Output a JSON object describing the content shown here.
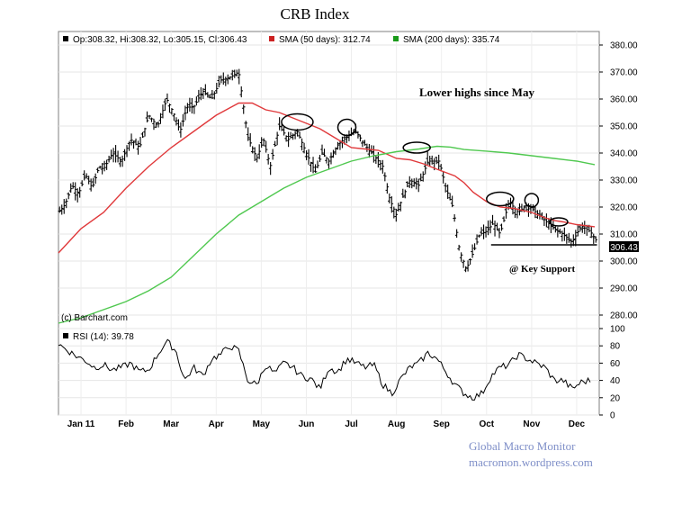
{
  "chart_data": {
    "type": "ohlc",
    "title": "CRB Index",
    "legend": {
      "ohlc": "Op:308.32, Hi:308.32, Lo:305.15, Cl:306.43",
      "sma50": "SMA (50 days): 312.74",
      "sma200": "SMA (200 days): 335.74"
    },
    "colors": {
      "sma50": "#e0393b",
      "sma200": "#4fc84f",
      "price": "#000000",
      "rsi": "#000000",
      "ohlc_swatch": "#000000"
    },
    "credit": "(c) Barchart.com",
    "last_value_label": "306.43",
    "x_labels": [
      "Jan 11",
      "Feb",
      "Mar",
      "Apr",
      "May",
      "Jun",
      "Jul",
      "Aug",
      "Sep",
      "Oct",
      "Nov",
      "Dec"
    ],
    "x_domain": [
      0,
      12
    ],
    "x_tick_positions": [
      0.5,
      1.5,
      2.5,
      3.5,
      4.5,
      5.5,
      6.5,
      7.5,
      8.5,
      9.5,
      10.5,
      11.5
    ],
    "price_axis": {
      "ylim": [
        275,
        385
      ],
      "ticks": [
        280,
        290,
        300,
        310,
        320,
        330,
        340,
        350,
        360,
        370,
        380
      ],
      "tick_labels": [
        "280.00",
        "290.00",
        "300.00",
        "310.00",
        "320.00",
        "330.00",
        "340.00",
        "350.00",
        "360.00",
        "370.00",
        "380.00"
      ]
    },
    "rsi_axis": {
      "ylim": [
        0,
        100
      ],
      "ticks": [
        0,
        20,
        40,
        60,
        80,
        100
      ],
      "tick_labels": [
        "0",
        "20",
        "40",
        "60",
        "80",
        "100"
      ],
      "label": "RSI (14): 39.78"
    },
    "price_path": {
      "t": [
        0.0,
        0.15,
        0.3,
        0.45,
        0.6,
        0.75,
        0.9,
        1.0,
        1.2,
        1.4,
        1.6,
        1.8,
        2.0,
        2.2,
        2.4,
        2.55,
        2.7,
        2.85,
        3.0,
        3.2,
        3.4,
        3.6,
        3.8,
        4.0,
        4.2,
        4.4,
        4.55,
        4.7,
        4.9,
        5.1,
        5.3,
        5.5,
        5.7,
        5.85,
        6.0,
        6.2,
        6.4,
        6.6,
        6.8,
        7.0,
        7.2,
        7.35,
        7.5,
        7.6,
        7.8,
        8.0,
        8.2,
        8.45,
        8.6,
        8.75,
        8.9,
        9.05,
        9.2,
        9.35,
        9.5,
        9.65,
        9.8,
        10.0,
        10.2,
        10.4,
        10.6,
        10.8,
        11.0,
        11.2,
        11.4,
        11.6,
        11.8,
        12.0
      ],
      "price": [
        318,
        321,
        328,
        325,
        332,
        327,
        335,
        334,
        340,
        337,
        345,
        342,
        354,
        350,
        360,
        355,
        348,
        357,
        357,
        363,
        360,
        367,
        368,
        370,
        346,
        338,
        345,
        335,
        350,
        345,
        348,
        340,
        333,
        340,
        337,
        343,
        346,
        348,
        343,
        339,
        335,
        323,
        317,
        322,
        330,
        328,
        337,
        337,
        327,
        320,
        304,
        297,
        303,
        310,
        311,
        314,
        310,
        322,
        318,
        321,
        318,
        315,
        312,
        310,
        307,
        313,
        311,
        306
      ]
    },
    "sma50": [
      [
        0,
        303
      ],
      [
        0.5,
        312
      ],
      [
        1.0,
        318
      ],
      [
        1.5,
        327
      ],
      [
        2.0,
        335
      ],
      [
        2.5,
        342
      ],
      [
        3.0,
        348
      ],
      [
        3.5,
        354
      ],
      [
        4.0,
        358.5
      ],
      [
        4.3,
        358.5
      ],
      [
        4.6,
        356
      ],
      [
        4.9,
        355
      ],
      [
        5.2,
        353
      ],
      [
        5.5,
        351
      ],
      [
        5.8,
        349
      ],
      [
        6.1,
        346
      ],
      [
        6.5,
        342
      ],
      [
        6.8,
        341.5
      ],
      [
        7.1,
        341
      ],
      [
        7.5,
        338
      ],
      [
        7.8,
        337.5
      ],
      [
        8.1,
        336
      ],
      [
        8.4,
        334
      ],
      [
        8.8,
        331.5
      ],
      [
        9.0,
        329
      ],
      [
        9.2,
        325.5
      ],
      [
        9.5,
        322
      ],
      [
        9.8,
        320
      ],
      [
        10.1,
        319.5
      ],
      [
        10.5,
        318
      ],
      [
        10.8,
        316
      ],
      [
        11.0,
        315
      ],
      [
        11.2,
        314.5
      ],
      [
        11.5,
        313.5
      ],
      [
        11.9,
        312.7
      ]
    ],
    "sma200": [
      [
        0,
        277
      ],
      [
        0.5,
        279
      ],
      [
        1.0,
        282
      ],
      [
        1.5,
        285
      ],
      [
        2.0,
        289
      ],
      [
        2.5,
        294
      ],
      [
        3.0,
        302
      ],
      [
        3.5,
        310
      ],
      [
        4.0,
        317
      ],
      [
        4.5,
        322
      ],
      [
        5.0,
        327
      ],
      [
        5.5,
        331
      ],
      [
        6.0,
        334
      ],
      [
        6.5,
        337
      ],
      [
        7.0,
        339
      ],
      [
        7.5,
        340.5
      ],
      [
        8.0,
        341.5
      ],
      [
        8.4,
        342.5
      ],
      [
        8.7,
        342.2
      ],
      [
        9.0,
        341.3
      ],
      [
        9.5,
        340.7
      ],
      [
        10.0,
        340
      ],
      [
        10.5,
        339
      ],
      [
        11.0,
        338
      ],
      [
        11.5,
        337
      ],
      [
        11.9,
        335.7
      ]
    ],
    "rsi_path": {
      "t": [
        0.0,
        0.2,
        0.4,
        0.6,
        0.8,
        1.0,
        1.2,
        1.4,
        1.6,
        1.8,
        2.0,
        2.2,
        2.4,
        2.6,
        2.8,
        3.0,
        3.2,
        3.4,
        3.6,
        3.8,
        4.0,
        4.2,
        4.4,
        4.6,
        4.8,
        5.0,
        5.2,
        5.4,
        5.6,
        5.8,
        6.0,
        6.2,
        6.4,
        6.6,
        6.8,
        7.0,
        7.2,
        7.4,
        7.6,
        7.8,
        8.0,
        8.2,
        8.4,
        8.6,
        8.8,
        9.0,
        9.2,
        9.4,
        9.6,
        9.8,
        10.0,
        10.2,
        10.4,
        10.6,
        10.8,
        11.0,
        11.2,
        11.4,
        11.6,
        11.8
      ],
      "rsi": [
        82,
        75,
        68,
        63,
        55,
        58,
        52,
        55,
        60,
        50,
        52,
        70,
        85,
        75,
        40,
        55,
        45,
        65,
        70,
        80,
        74,
        40,
        35,
        58,
        48,
        60,
        55,
        45,
        42,
        30,
        55,
        50,
        65,
        60,
        55,
        58,
        35,
        25,
        42,
        55,
        60,
        72,
        65,
        50,
        35,
        25,
        20,
        25,
        45,
        55,
        58,
        70,
        65,
        60,
        55,
        40,
        40,
        30,
        38,
        40
      ]
    },
    "annotations": {
      "lower_highs": "Lower highs since May",
      "key_support": "@ Key Support",
      "support_level": 306,
      "support_x": [
        9.6,
        11.95
      ],
      "ellipses": [
        {
          "x": 5.3,
          "y": 351.5,
          "rx": 0.35,
          "ry": 3
        },
        {
          "x": 6.4,
          "y": 349.5,
          "rx": 0.2,
          "ry": 3
        },
        {
          "x": 7.95,
          "y": 342,
          "rx": 0.3,
          "ry": 2
        },
        {
          "x": 9.8,
          "y": 323,
          "rx": 0.3,
          "ry": 2.5
        },
        {
          "x": 10.5,
          "y": 322.5,
          "rx": 0.15,
          "ry": 2.5
        },
        {
          "x": 11.1,
          "y": 314.5,
          "rx": 0.2,
          "ry": 1.5
        }
      ]
    }
  },
  "watermark": {
    "line1": "Global Macro Monitor",
    "line2": "macromon.wordpress.com"
  }
}
